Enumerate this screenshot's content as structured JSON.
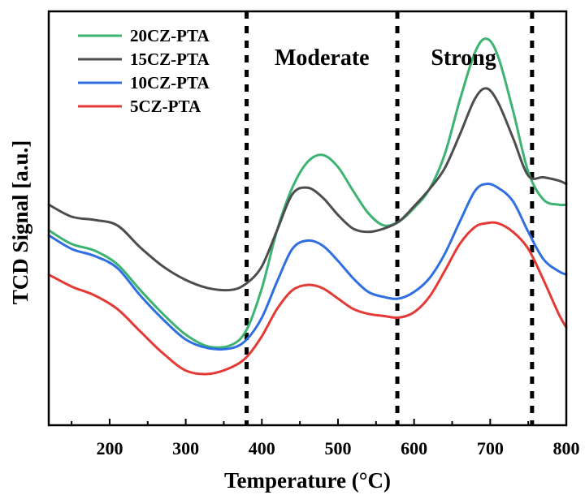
{
  "chart_data": {
    "type": "line",
    "xlabel": "Temperature (°C)",
    "ylabel": "TCD Signal [a.u.]",
    "xlim": [
      120,
      800
    ],
    "ylim": [
      0,
      100
    ],
    "x_ticks": [
      200,
      300,
      400,
      500,
      600,
      700,
      800
    ],
    "y_ticks": [],
    "grid": false,
    "legend_position": "top-left",
    "region_boundaries": [
      380,
      578,
      755
    ],
    "annotations": [
      {
        "text": "Moderate",
        "x": 479
      },
      {
        "text": "Strong",
        "x": 665
      }
    ],
    "series": [
      {
        "name": "20CZ-PTA",
        "color": "#3cb371",
        "x": [
          120,
          150,
          180,
          210,
          240,
          270,
          300,
          330,
          360,
          380,
          400,
          420,
          440,
          460,
          480,
          500,
          520,
          540,
          560,
          580,
          600,
          620,
          640,
          660,
          680,
          695,
          710,
          730,
          750,
          770,
          790,
          800
        ],
        "y": [
          47.1,
          43.8,
          42.2,
          38.9,
          32.7,
          26.9,
          21.9,
          19.0,
          19.4,
          23.1,
          33.1,
          47.1,
          57.4,
          63.6,
          65.3,
          62.4,
          56.6,
          51.2,
          48.3,
          49.2,
          52.5,
          57.0,
          65.3,
          78.5,
          90.1,
          93.4,
          89.3,
          76.0,
          61.2,
          54.5,
          53.3,
          53.3
        ]
      },
      {
        "name": "15CZ-PTA",
        "color": "#4d4d4d",
        "x": [
          120,
          150,
          180,
          210,
          240,
          270,
          300,
          330,
          360,
          380,
          400,
          420,
          440,
          460,
          480,
          500,
          520,
          540,
          560,
          580,
          600,
          620,
          640,
          660,
          680,
          695,
          710,
          730,
          750,
          770,
          790,
          800
        ],
        "y": [
          53.3,
          50.4,
          49.6,
          48.3,
          43.0,
          38.4,
          35.1,
          33.1,
          32.7,
          34.3,
          38.4,
          47.1,
          55.8,
          57.4,
          55.0,
          50.8,
          47.5,
          46.7,
          47.5,
          49.2,
          52.9,
          57.0,
          62.0,
          70.2,
          78.9,
          81.4,
          78.1,
          69.4,
          60.3,
          59.9,
          59.1,
          58.3
        ]
      },
      {
        "name": "10CZ-PTA",
        "color": "#2f6fe0",
        "x": [
          120,
          150,
          180,
          210,
          240,
          270,
          300,
          330,
          360,
          380,
          400,
          420,
          440,
          460,
          480,
          500,
          520,
          540,
          560,
          580,
          600,
          620,
          640,
          660,
          680,
          695,
          710,
          730,
          750,
          770,
          790,
          800
        ],
        "y": [
          45.9,
          42.6,
          40.9,
          38.0,
          31.4,
          25.6,
          20.7,
          18.6,
          18.6,
          20.7,
          26.0,
          34.7,
          42.6,
          44.6,
          43.4,
          39.7,
          35.5,
          32.2,
          31.0,
          30.6,
          32.2,
          35.5,
          41.3,
          49.2,
          56.6,
          58.3,
          57.4,
          54.1,
          46.7,
          40.1,
          37.2,
          36.4
        ]
      },
      {
        "name": "5CZ-PTA",
        "color": "#e53935",
        "x": [
          120,
          150,
          180,
          210,
          240,
          270,
          300,
          330,
          360,
          380,
          400,
          420,
          440,
          460,
          480,
          500,
          520,
          540,
          560,
          580,
          600,
          620,
          640,
          660,
          680,
          695,
          710,
          730,
          750,
          770,
          790,
          800
        ],
        "y": [
          36.4,
          33.5,
          31.4,
          28.1,
          22.7,
          17.4,
          13.2,
          12.4,
          14.0,
          16.5,
          21.5,
          28.1,
          32.6,
          33.9,
          33.1,
          30.6,
          28.1,
          26.9,
          26.4,
          26.0,
          27.3,
          31.0,
          37.2,
          43.8,
          47.9,
          48.8,
          48.8,
          46.7,
          42.6,
          35.1,
          26.9,
          23.6
        ]
      }
    ]
  }
}
